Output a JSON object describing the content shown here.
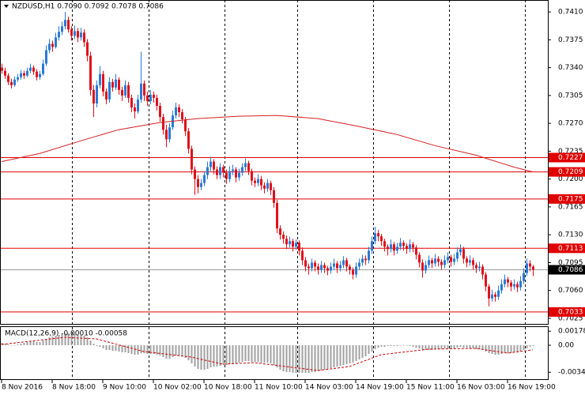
{
  "chart_data": {
    "type": "candlestick",
    "title": "NZDUSD,H1  0.7090 0.7092 0.7078 0.7086",
    "up_color": "#2a7ad6",
    "down_color": "#e0101a",
    "ma_color": "#d42020",
    "level_color": "#e00000",
    "last_color": "#9a9a9a",
    "xlim": [
      -0.5,
      172.75
    ],
    "xticks": [
      {
        "value": 0,
        "label": "8 Nov 2016"
      },
      {
        "value": 16,
        "label": "8 Nov 18:00"
      },
      {
        "value": 32,
        "label": "9 Nov 10:00"
      },
      {
        "value": 48,
        "label": "10 Nov 02:00"
      },
      {
        "value": 64,
        "label": "10 Nov 18:00"
      },
      {
        "value": 80,
        "label": "11 Nov 10:00"
      },
      {
        "value": 96,
        "label": "14 Nov 03:00"
      },
      {
        "value": 112,
        "label": "14 Nov 19:00"
      },
      {
        "value": 128,
        "label": "15 Nov 11:00"
      },
      {
        "value": 144,
        "label": "16 Nov 03:00"
      },
      {
        "value": 160,
        "label": "16 Nov 19:00"
      }
    ],
    "ylim": [
      0.7018,
      0.7425
    ],
    "yticks": [
      {
        "value": 0.741,
        "label": "0.7410"
      },
      0.7375,
      {
        "value": 0.734,
        "label": "0.7340"
      },
      0.7305,
      {
        "value": 0.727,
        "label": "0.7270"
      },
      0.7235,
      {
        "value": 0.72,
        "label": "0.7200"
      },
      0.7165,
      {
        "value": 0.713,
        "label": "0.7130"
      },
      0.7095,
      {
        "value": 0.706,
        "label": "0.7060"
      },
      0.7025
    ],
    "levels": [
      0.7227,
      0.7209,
      0.7175,
      0.7113,
      0.7033
    ],
    "last_price": 0.7086,
    "candles": [
      [
        0.734,
        0.7345,
        0.7332,
        0.7336
      ],
      [
        0.7336,
        0.734,
        0.7326,
        0.733
      ],
      [
        0.733,
        0.7333,
        0.7318,
        0.7322
      ],
      [
        0.7322,
        0.7326,
        0.7314,
        0.7318
      ],
      [
        0.7318,
        0.7329,
        0.7316,
        0.7325
      ],
      [
        0.7325,
        0.7332,
        0.7322,
        0.7328
      ],
      [
        0.7328,
        0.7337,
        0.7325,
        0.7333
      ],
      [
        0.7333,
        0.7336,
        0.7326,
        0.733
      ],
      [
        0.733,
        0.734,
        0.7328,
        0.7336
      ],
      [
        0.7336,
        0.7345,
        0.7333,
        0.734
      ],
      [
        0.734,
        0.7343,
        0.7331,
        0.7335
      ],
      [
        0.7335,
        0.7338,
        0.7324,
        0.7328
      ],
      [
        0.7328,
        0.7336,
        0.7325,
        0.7332
      ],
      [
        0.7332,
        0.735,
        0.733,
        0.7345
      ],
      [
        0.7345,
        0.7368,
        0.7342,
        0.7362
      ],
      [
        0.7362,
        0.7376,
        0.7358,
        0.737
      ],
      [
        0.737,
        0.7374,
        0.736,
        0.7366
      ],
      [
        0.7366,
        0.7384,
        0.7364,
        0.7378
      ],
      [
        0.7378,
        0.7392,
        0.7374,
        0.7385
      ],
      [
        0.7385,
        0.7398,
        0.7381,
        0.7392
      ],
      [
        0.7392,
        0.741,
        0.7388,
        0.74
      ],
      [
        0.74,
        0.7404,
        0.7384,
        0.7388
      ],
      [
        0.7388,
        0.7392,
        0.7374,
        0.738
      ],
      [
        0.738,
        0.7393,
        0.7376,
        0.7386
      ],
      [
        0.7386,
        0.739,
        0.7372,
        0.7378
      ],
      [
        0.7378,
        0.739,
        0.7374,
        0.7384
      ],
      [
        0.7384,
        0.7388,
        0.7366,
        0.7372
      ],
      [
        0.7372,
        0.7376,
        0.7348,
        0.7355
      ],
      [
        0.7355,
        0.736,
        0.7305,
        0.7312
      ],
      [
        0.7312,
        0.7318,
        0.7278,
        0.7295
      ],
      [
        0.7295,
        0.7324,
        0.729,
        0.7318
      ],
      [
        0.7318,
        0.7342,
        0.7314,
        0.7332
      ],
      [
        0.7332,
        0.7336,
        0.7304,
        0.731
      ],
      [
        0.731,
        0.7314,
        0.7294,
        0.73
      ],
      [
        0.73,
        0.7328,
        0.7296,
        0.7322
      ],
      [
        0.7322,
        0.7326,
        0.731,
        0.7315
      ],
      [
        0.7315,
        0.7332,
        0.7312,
        0.7325
      ],
      [
        0.7325,
        0.7328,
        0.7306,
        0.7312
      ],
      [
        0.7312,
        0.7316,
        0.7298,
        0.7305
      ],
      [
        0.7305,
        0.7324,
        0.7302,
        0.7318
      ],
      [
        0.7318,
        0.7322,
        0.7296,
        0.7302
      ],
      [
        0.7302,
        0.7306,
        0.7284,
        0.729
      ],
      [
        0.729,
        0.7295,
        0.7276,
        0.7285
      ],
      [
        0.7285,
        0.7306,
        0.7282,
        0.73
      ],
      [
        0.73,
        0.736,
        0.7296,
        0.732
      ],
      [
        0.732,
        0.7324,
        0.7298,
        0.7305
      ],
      [
        0.7305,
        0.731,
        0.7292,
        0.7298
      ],
      [
        0.7298,
        0.7312,
        0.7294,
        0.7306
      ],
      [
        0.7306,
        0.731,
        0.7296,
        0.7302
      ],
      [
        0.7302,
        0.7306,
        0.7286,
        0.7292
      ],
      [
        0.7292,
        0.7296,
        0.7272,
        0.7278
      ],
      [
        0.7278,
        0.7282,
        0.7256,
        0.7262
      ],
      [
        0.7262,
        0.7268,
        0.724,
        0.725
      ],
      [
        0.725,
        0.727,
        0.7246,
        0.7265
      ],
      [
        0.7265,
        0.7286,
        0.7262,
        0.728
      ],
      [
        0.728,
        0.7296,
        0.7276,
        0.729
      ],
      [
        0.729,
        0.7294,
        0.7278,
        0.7284
      ],
      [
        0.7284,
        0.7288,
        0.727,
        0.7275
      ],
      [
        0.7275,
        0.7278,
        0.7254,
        0.726
      ],
      [
        0.726,
        0.7264,
        0.7232,
        0.7238
      ],
      [
        0.7238,
        0.7242,
        0.7206,
        0.7212
      ],
      [
        0.7212,
        0.7216,
        0.718,
        0.72
      ],
      [
        0.72,
        0.7205,
        0.7182,
        0.719
      ],
      [
        0.719,
        0.72,
        0.7186,
        0.7195
      ],
      [
        0.7195,
        0.721,
        0.7191,
        0.7205
      ],
      [
        0.7205,
        0.7222,
        0.72,
        0.7215
      ],
      [
        0.7215,
        0.7228,
        0.721,
        0.7222
      ],
      [
        0.7222,
        0.7225,
        0.7206,
        0.7212
      ],
      [
        0.7212,
        0.7216,
        0.72,
        0.7205
      ],
      [
        0.7205,
        0.722,
        0.72,
        0.7215
      ],
      [
        0.7215,
        0.7218,
        0.7202,
        0.7208
      ],
      [
        0.7208,
        0.7212,
        0.7194,
        0.72
      ],
      [
        0.72,
        0.7216,
        0.7196,
        0.721
      ],
      [
        0.721,
        0.7218,
        0.7205,
        0.7212
      ],
      [
        0.7212,
        0.7215,
        0.7196,
        0.7202
      ],
      [
        0.7202,
        0.7213,
        0.7198,
        0.7208
      ],
      [
        0.7208,
        0.722,
        0.7204,
        0.7215
      ],
      [
        0.7215,
        0.7226,
        0.721,
        0.722
      ],
      [
        0.722,
        0.7223,
        0.7205,
        0.721
      ],
      [
        0.721,
        0.7213,
        0.7192,
        0.7198
      ],
      [
        0.7198,
        0.7202,
        0.719,
        0.7195
      ],
      [
        0.7195,
        0.7206,
        0.7191,
        0.72
      ],
      [
        0.72,
        0.7204,
        0.7186,
        0.7192
      ],
      [
        0.7192,
        0.7196,
        0.7182,
        0.7188
      ],
      [
        0.7188,
        0.72,
        0.7184,
        0.7195
      ],
      [
        0.7195,
        0.7198,
        0.718,
        0.7186
      ],
      [
        0.7186,
        0.719,
        0.7164,
        0.717
      ],
      [
        0.717,
        0.7174,
        0.7132,
        0.7138
      ],
      [
        0.7138,
        0.7142,
        0.7124,
        0.713
      ],
      [
        0.713,
        0.7134,
        0.7119,
        0.7125
      ],
      [
        0.7125,
        0.7129,
        0.7112,
        0.7118
      ],
      [
        0.7118,
        0.7128,
        0.7114,
        0.7122
      ],
      [
        0.7122,
        0.7125,
        0.7109,
        0.7115
      ],
      [
        0.7115,
        0.7124,
        0.7111,
        0.712
      ],
      [
        0.712,
        0.7123,
        0.7104,
        0.711
      ],
      [
        0.711,
        0.7114,
        0.7092,
        0.7098
      ],
      [
        0.7098,
        0.7102,
        0.7084,
        0.709
      ],
      [
        0.709,
        0.7094,
        0.708,
        0.7088
      ],
      [
        0.7088,
        0.71,
        0.7084,
        0.7095
      ],
      [
        0.7095,
        0.7098,
        0.7084,
        0.709
      ],
      [
        0.709,
        0.7094,
        0.708,
        0.7086
      ],
      [
        0.7086,
        0.7097,
        0.7082,
        0.7092
      ],
      [
        0.7092,
        0.7095,
        0.7082,
        0.7088
      ],
      [
        0.7088,
        0.7091,
        0.7079,
        0.7085
      ],
      [
        0.7085,
        0.7095,
        0.7081,
        0.709
      ],
      [
        0.709,
        0.71,
        0.7086,
        0.7094
      ],
      [
        0.7094,
        0.7097,
        0.7082,
        0.7088
      ],
      [
        0.7088,
        0.7097,
        0.7084,
        0.7092
      ],
      [
        0.7092,
        0.7103,
        0.7088,
        0.7098
      ],
      [
        0.7098,
        0.7101,
        0.7084,
        0.709
      ],
      [
        0.709,
        0.7093,
        0.708,
        0.7086
      ],
      [
        0.7086,
        0.7089,
        0.7074,
        0.708
      ],
      [
        0.708,
        0.7095,
        0.7076,
        0.709
      ],
      [
        0.709,
        0.71,
        0.7086,
        0.7095
      ],
      [
        0.7095,
        0.7105,
        0.7091,
        0.71
      ],
      [
        0.71,
        0.7104,
        0.7092,
        0.7098
      ],
      [
        0.7098,
        0.7115,
        0.7094,
        0.711
      ],
      [
        0.711,
        0.7128,
        0.7106,
        0.7122
      ],
      [
        0.7122,
        0.714,
        0.7118,
        0.7132
      ],
      [
        0.7132,
        0.7136,
        0.7122,
        0.7128
      ],
      [
        0.7128,
        0.7131,
        0.7116,
        0.7122
      ],
      [
        0.7122,
        0.7125,
        0.7109,
        0.7115
      ],
      [
        0.7115,
        0.7118,
        0.7104,
        0.7112
      ],
      [
        0.7112,
        0.7124,
        0.7108,
        0.7118
      ],
      [
        0.7118,
        0.7121,
        0.7104,
        0.711
      ],
      [
        0.711,
        0.712,
        0.7106,
        0.7115
      ],
      [
        0.7115,
        0.7126,
        0.7111,
        0.712
      ],
      [
        0.712,
        0.7123,
        0.711,
        0.7116
      ],
      [
        0.7116,
        0.7119,
        0.7106,
        0.7112
      ],
      [
        0.7112,
        0.7124,
        0.7108,
        0.7118
      ],
      [
        0.7118,
        0.7121,
        0.7108,
        0.7114
      ],
      [
        0.7114,
        0.7117,
        0.7099,
        0.7105
      ],
      [
        0.7105,
        0.7108,
        0.7089,
        0.7095
      ],
      [
        0.7095,
        0.7099,
        0.7076,
        0.7085
      ],
      [
        0.7085,
        0.7097,
        0.7081,
        0.7092
      ],
      [
        0.7092,
        0.7104,
        0.7088,
        0.7098
      ],
      [
        0.7098,
        0.7101,
        0.7088,
        0.7094
      ],
      [
        0.7094,
        0.7106,
        0.709,
        0.71
      ],
      [
        0.71,
        0.7103,
        0.709,
        0.7096
      ],
      [
        0.7096,
        0.7099,
        0.7086,
        0.7092
      ],
      [
        0.7092,
        0.7104,
        0.7088,
        0.7098
      ],
      [
        0.7098,
        0.7108,
        0.7094,
        0.7102
      ],
      [
        0.7102,
        0.7105,
        0.709,
        0.7096
      ],
      [
        0.7096,
        0.7106,
        0.7092,
        0.71
      ],
      [
        0.71,
        0.7114,
        0.7096,
        0.7108
      ],
      [
        0.7108,
        0.7118,
        0.7104,
        0.7112
      ],
      [
        0.7112,
        0.7115,
        0.7094,
        0.71
      ],
      [
        0.71,
        0.7103,
        0.7089,
        0.7095
      ],
      [
        0.7095,
        0.7104,
        0.7091,
        0.7098
      ],
      [
        0.7098,
        0.7101,
        0.7086,
        0.7092
      ],
      [
        0.7092,
        0.7095,
        0.7082,
        0.7088
      ],
      [
        0.7088,
        0.7096,
        0.7084,
        0.709
      ],
      [
        0.709,
        0.7093,
        0.7074,
        0.708
      ],
      [
        0.708,
        0.7083,
        0.7059,
        0.7065
      ],
      [
        0.7065,
        0.7068,
        0.704,
        0.705
      ],
      [
        0.705,
        0.7061,
        0.7046,
        0.7055
      ],
      [
        0.7055,
        0.7058,
        0.7046,
        0.7052
      ],
      [
        0.7052,
        0.7066,
        0.7048,
        0.706
      ],
      [
        0.706,
        0.7074,
        0.7056,
        0.7068
      ],
      [
        0.7068,
        0.708,
        0.7064,
        0.7074
      ],
      [
        0.7074,
        0.7077,
        0.7064,
        0.707
      ],
      [
        0.707,
        0.7073,
        0.7059,
        0.7065
      ],
      [
        0.7065,
        0.7074,
        0.7061,
        0.7068
      ],
      [
        0.7068,
        0.7071,
        0.7058,
        0.7064
      ],
      [
        0.7064,
        0.7078,
        0.706,
        0.7072
      ],
      [
        0.7072,
        0.7088,
        0.7068,
        0.7082
      ],
      [
        0.7082,
        0.71,
        0.7078,
        0.7094
      ],
      [
        0.7094,
        0.7098,
        0.7084,
        0.709
      ],
      [
        0.709,
        0.7092,
        0.7078,
        0.7086
      ]
    ],
    "ma": {
      "x": [
        0,
        12,
        25,
        37,
        50,
        62,
        75,
        87,
        100,
        112,
        125,
        137,
        150,
        162,
        168
      ],
      "values": [
        0.7222,
        0.7232,
        0.7248,
        0.7262,
        0.7271,
        0.7276,
        0.7279,
        0.728,
        0.7276,
        0.7267,
        0.7256,
        0.7242,
        0.723,
        0.7215,
        0.7209
      ]
    },
    "macd": {
      "label": "MACD(12,26,9) -0.00010 -0.00058",
      "color": "#a0a0a0",
      "signal_color": "#d00000",
      "ylim": [
        -0.0044,
        0.0024
      ],
      "yticks": [
        0.00178,
        {
          "value": 0,
          "label": "0.00"
        },
        -0.00342
      ],
      "values": [
        0.0003,
        0.0002,
        0.0001,
        0,
        0,
        0.0001,
        0.0002,
        0.0003,
        0.0004,
        0.0005,
        0.0005,
        0.0004,
        0.0004,
        0.0006,
        0.0008,
        0.001,
        0.0011,
        0.0012,
        0.0013,
        0.0014,
        0.0015,
        0.0015,
        0.0014,
        0.0014,
        0.0013,
        0.0013,
        0.0012,
        0.001,
        0.0006,
        0.0002,
        -0.0001,
        -0.0002,
        -0.0004,
        -0.0006,
        -0.0006,
        -0.0007,
        -0.0007,
        -0.0008,
        -0.0009,
        -0.0009,
        -0.001,
        -0.0011,
        -0.0012,
        -0.0012,
        -0.001,
        -0.001,
        -0.0011,
        -0.0011,
        -0.0011,
        -0.0012,
        -0.0013,
        -0.0015,
        -0.0017,
        -0.0017,
        -0.0015,
        -0.0013,
        -0.0013,
        -0.0014,
        -0.0016,
        -0.0019,
        -0.0023,
        -0.0027,
        -0.003,
        -0.0031,
        -0.0031,
        -0.003,
        -0.0028,
        -0.0027,
        -0.0027,
        -0.0026,
        -0.0025,
        -0.0025,
        -0.0024,
        -0.0023,
        -0.0023,
        -0.0022,
        -0.0021,
        -0.002,
        -0.002,
        -0.0021,
        -0.0021,
        -0.0021,
        -0.0022,
        -0.0022,
        -0.0022,
        -0.0023,
        -0.0025,
        -0.0028,
        -0.0031,
        -0.0033,
        -0.0034,
        -0.0034,
        -0.0035,
        -0.0035,
        -0.0035,
        -0.0035,
        -0.0035,
        -0.0035,
        -0.0034,
        -0.0034,
        -0.0033,
        -0.0032,
        -0.0031,
        -0.003,
        -0.0029,
        -0.0028,
        -0.0027,
        -0.0026,
        -0.0025,
        -0.0024,
        -0.0023,
        -0.0022,
        -0.002,
        -0.0018,
        -0.0016,
        -0.0014,
        -0.0011,
        -0.0008,
        -0.0005,
        -0.0003,
        -0.0002,
        -0.0002,
        -0.0001,
        -0.0001,
        -0.0001,
        -0.0001,
        0,
        0,
        0,
        -0.0001,
        -0.0002,
        -0.0003,
        -0.0004,
        -0.0006,
        -0.0006,
        -0.0006,
        -0.0006,
        -0.0005,
        -0.0005,
        -0.0005,
        -0.0004,
        -0.0004,
        -0.0004,
        -0.0004,
        -0.0003,
        -0.0002,
        -0.0003,
        -0.0003,
        -0.0004,
        -0.0004,
        -0.0005,
        -0.0005,
        -0.0006,
        -0.0008,
        -0.001,
        -0.0011,
        -0.0012,
        -0.0012,
        -0.0011,
        -0.001,
        -0.001,
        -0.001,
        -0.0009,
        -0.0009,
        -0.0008,
        -0.0006,
        -0.0004,
        -0.0002,
        -0.0001
      ],
      "signal": {
        "x": [
          0,
          20,
          30,
          45,
          60,
          70,
          80,
          90,
          100,
          110,
          120,
          135,
          150,
          160,
          168
        ],
        "values": [
          0.0001,
          0.001,
          0.0008,
          -0.0008,
          -0.0015,
          -0.0024,
          -0.0022,
          -0.0027,
          -0.0032,
          -0.0027,
          -0.0012,
          -0.0005,
          -0.0004,
          -0.001,
          -0.00058
        ]
      }
    }
  }
}
